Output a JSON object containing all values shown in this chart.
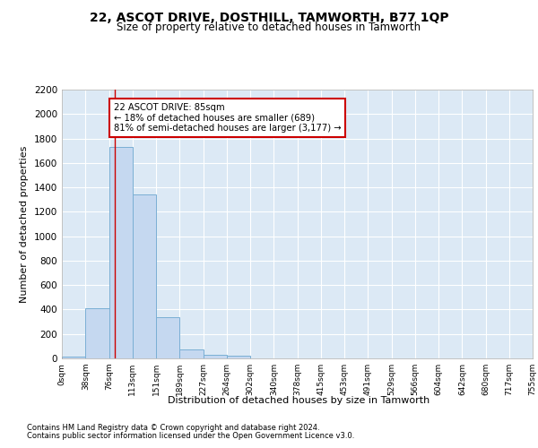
{
  "title": "22, ASCOT DRIVE, DOSTHILL, TAMWORTH, B77 1QP",
  "subtitle": "Size of property relative to detached houses in Tamworth",
  "xlabel": "Distribution of detached houses by size in Tamworth",
  "ylabel": "Number of detached properties",
  "bar_color": "#c5d8f0",
  "bar_edge_color": "#7aafd4",
  "background_color": "#dce9f5",
  "grid_color": "#ffffff",
  "bin_labels": [
    "0sqm",
    "38sqm",
    "76sqm",
    "113sqm",
    "151sqm",
    "189sqm",
    "227sqm",
    "264sqm",
    "302sqm",
    "340sqm",
    "378sqm",
    "415sqm",
    "453sqm",
    "491sqm",
    "529sqm",
    "566sqm",
    "604sqm",
    "642sqm",
    "680sqm",
    "717sqm",
    "755sqm"
  ],
  "bar_heights": [
    15,
    410,
    1730,
    1345,
    340,
    75,
    30,
    20,
    0,
    0,
    0,
    0,
    0,
    0,
    0,
    0,
    0,
    0,
    0,
    0
  ],
  "bin_edges": [
    0,
    38,
    76,
    113,
    151,
    189,
    227,
    264,
    302,
    340,
    378,
    415,
    453,
    491,
    529,
    566,
    604,
    642,
    680,
    717,
    755
  ],
  "ylim": [
    0,
    2200
  ],
  "yticks": [
    0,
    200,
    400,
    600,
    800,
    1000,
    1200,
    1400,
    1600,
    1800,
    2000,
    2200
  ],
  "xlim": [
    0,
    755
  ],
  "property_size": 85,
  "annotation_text": "22 ASCOT DRIVE: 85sqm\n← 18% of detached houses are smaller (689)\n81% of semi-detached houses are larger (3,177) →",
  "annotation_box_color": "#ffffff",
  "annotation_box_edge": "#cc0000",
  "vline_color": "#cc0000",
  "footer_line1": "Contains HM Land Registry data © Crown copyright and database right 2024.",
  "footer_line2": "Contains public sector information licensed under the Open Government Licence v3.0."
}
